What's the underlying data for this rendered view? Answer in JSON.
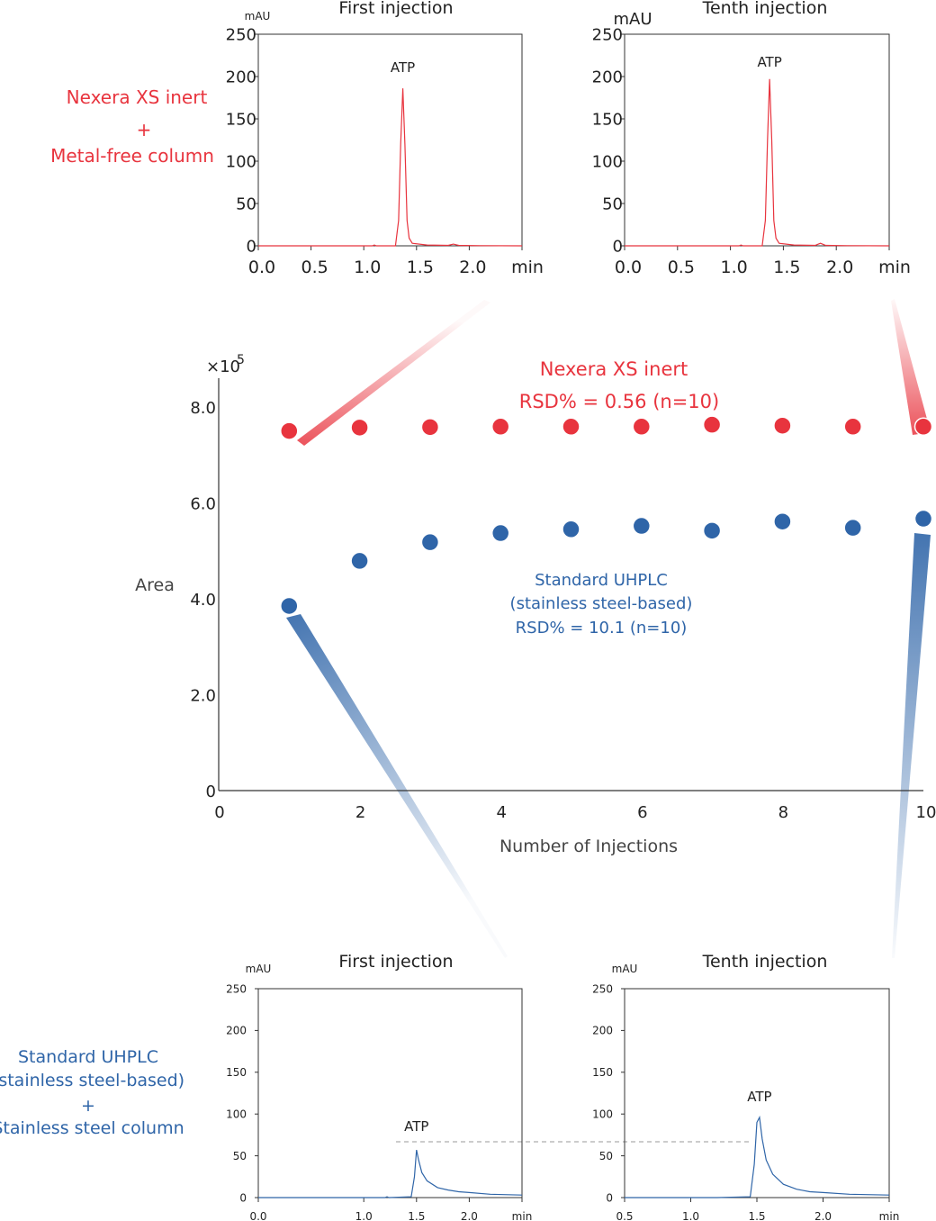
{
  "colors": {
    "red": "#e8343e",
    "blue": "#2f65a8",
    "axis": "#333333"
  },
  "labels": {
    "top_system_line1": "Nexera XS inert",
    "top_system_plus": "+",
    "top_system_line2": "Metal-free column",
    "bottom_system_line1": "Standard UHPLC",
    "bottom_system_line2": "(stainless steel-based)",
    "bottom_system_plus": "+",
    "bottom_system_line3": "Stainless steel column"
  },
  "chart_data": [
    {
      "type": "scatter",
      "id": "area-vs-injections",
      "ylabel": "Area",
      "xlabel": "Number of Injections",
      "y_multiplier": "×10",
      "y_multiplier_exp": "5",
      "xlim": [
        0,
        10
      ],
      "ylim": [
        0,
        8.6
      ],
      "x_ticks": [
        0,
        2,
        4,
        6,
        8,
        10
      ],
      "y_ticks": [
        "0",
        "2.0",
        "4.0",
        "6.0",
        "8.0"
      ],
      "series": [
        {
          "name": "Nexera XS inert",
          "annotation": "RSD% = 0.56 (n=10)",
          "color": "#e8343e",
          "x": [
            1,
            2,
            3,
            4,
            5,
            6,
            7,
            8,
            9,
            10
          ],
          "y": [
            7.5,
            7.57,
            7.58,
            7.59,
            7.59,
            7.59,
            7.63,
            7.61,
            7.59,
            7.59
          ]
        },
        {
          "name": "Standard UHPLC",
          "name_line2": "(stainless steel-based)",
          "annotation": "RSD% = 10.1 (n=10)",
          "color": "#2f65a8",
          "x": [
            1,
            2,
            3,
            4,
            5,
            6,
            7,
            8,
            9,
            10
          ],
          "y": [
            3.85,
            4.79,
            5.18,
            5.37,
            5.45,
            5.52,
            5.42,
            5.61,
            5.48,
            5.67
          ]
        }
      ]
    },
    {
      "type": "line",
      "id": "chrom-top-first",
      "title": "First injection",
      "ylabel": "mAU",
      "xunit": "min",
      "peak_label": "ATP",
      "xlim": [
        0,
        2.5
      ],
      "ylim": [
        0,
        250
      ],
      "x_ticks": [
        "0.0",
        "0.5",
        "1.0",
        "1.5",
        "2.0"
      ],
      "y_ticks": [
        "0",
        "50",
        "100",
        "150",
        "200",
        "250"
      ],
      "color": "#e8343e",
      "x": [
        0,
        1.08,
        1.1,
        1.12,
        1.3,
        1.33,
        1.35,
        1.37,
        1.39,
        1.41,
        1.43,
        1.46,
        1.6,
        1.8,
        1.85,
        1.9,
        2.1,
        2.5
      ],
      "y": [
        0,
        0,
        1,
        0,
        0,
        30,
        120,
        186,
        120,
        30,
        9,
        3,
        1,
        0.5,
        2,
        0.5,
        0.2,
        0
      ]
    },
    {
      "type": "line",
      "id": "chrom-top-tenth",
      "title": "Tenth injection",
      "ylabel": "mAU",
      "xunit": "min",
      "peak_label": "ATP",
      "xlim": [
        0,
        2.5
      ],
      "ylim": [
        0,
        250
      ],
      "x_ticks": [
        "0.0",
        "0.5",
        "1.0",
        "1.5",
        "2.0"
      ],
      "y_ticks": [
        "0",
        "50",
        "100",
        "150",
        "200",
        "250"
      ],
      "color": "#e8343e",
      "x": [
        0,
        1.08,
        1.1,
        1.12,
        1.3,
        1.33,
        1.35,
        1.37,
        1.39,
        1.41,
        1.43,
        1.46,
        1.6,
        1.8,
        1.85,
        1.9,
        2.1,
        2.5
      ],
      "y": [
        0,
        0,
        1,
        0,
        0,
        30,
        125,
        197,
        125,
        30,
        9,
        3,
        1,
        0.5,
        3,
        0.5,
        0.2,
        0
      ]
    },
    {
      "type": "line",
      "id": "chrom-bottom-first",
      "title": "First injection",
      "ylabel": "mAU",
      "xunit": "min",
      "peak_label": "ATP",
      "xlim": [
        0,
        2.5
      ],
      "ylim": [
        0,
        250
      ],
      "x_ticks": [
        "0.0",
        "1.0",
        "1.5",
        "2.0"
      ],
      "x_tick_values": [
        0,
        1.0,
        1.5,
        2.0
      ],
      "y_ticks": [
        "0",
        "50",
        "100",
        "150",
        "200",
        "250"
      ],
      "color": "#2f65a8",
      "x": [
        0,
        1.2,
        1.22,
        1.24,
        1.45,
        1.48,
        1.5,
        1.52,
        1.55,
        1.6,
        1.7,
        1.8,
        1.9,
        2.0,
        2.2,
        2.5
      ],
      "y": [
        0,
        0,
        1,
        0,
        1,
        25,
        57,
        45,
        30,
        20,
        12,
        9,
        7,
        6,
        4,
        3
      ]
    },
    {
      "type": "line",
      "id": "chrom-bottom-tenth",
      "title": "Tenth injection",
      "ylabel": "mAU",
      "xunit": "min",
      "peak_label": "ATP",
      "xlim": [
        0.5,
        2.5
      ],
      "ylim": [
        0,
        250
      ],
      "x_ticks": [
        "0.5",
        "1.0",
        "1.5",
        "2.0"
      ],
      "x_tick_values": [
        0.5,
        1.0,
        1.5,
        2.0
      ],
      "y_ticks": [
        "0",
        "50",
        "100",
        "150",
        "200",
        "250"
      ],
      "color": "#2f65a8",
      "x": [
        0.5,
        1.2,
        1.45,
        1.48,
        1.5,
        1.52,
        1.54,
        1.57,
        1.62,
        1.7,
        1.8,
        1.9,
        2.0,
        2.2,
        2.5
      ],
      "y": [
        0,
        0,
        1,
        40,
        90,
        96,
        70,
        45,
        28,
        16,
        10,
        7,
        6,
        4,
        3
      ]
    }
  ]
}
